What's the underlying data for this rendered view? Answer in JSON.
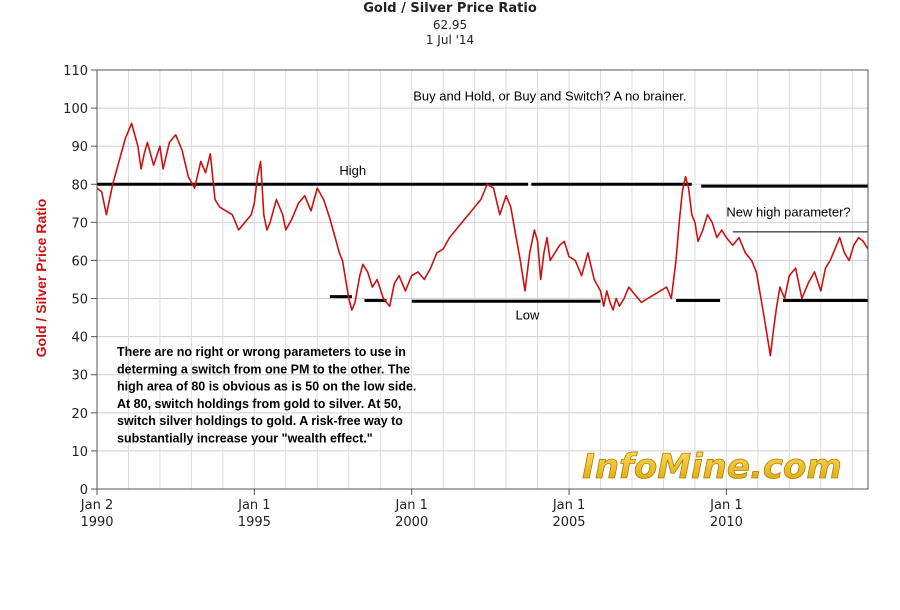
{
  "chart_data": {
    "type": "line",
    "title": "Gold / Silver Price Ratio",
    "subtitle": "62.95",
    "date_label": "1 Jul '14",
    "ylabel": "Gold / Silver Price Ratio",
    "xlabel": "",
    "ylim": [
      0,
      110
    ],
    "xlim": [
      1990.0,
      2014.5
    ],
    "yticks": [
      0,
      10,
      20,
      30,
      40,
      50,
      60,
      70,
      80,
      90,
      100,
      110
    ],
    "xticks": [
      {
        "x": 1990.0,
        "line1": "Jan 2",
        "line2": "1990"
      },
      {
        "x": 1995.0,
        "line1": "Jan 1",
        "line2": "1995"
      },
      {
        "x": 2000.0,
        "line1": "Jan 1",
        "line2": "2000"
      },
      {
        "x": 2005.0,
        "line1": "Jan 1",
        "line2": "2005"
      },
      {
        "x": 2010.0,
        "line1": "Jan 1",
        "line2": "2010"
      }
    ],
    "grid": true,
    "line_color": "#cc1111",
    "series": [
      {
        "x": [
          1990.0,
          1990.15,
          1990.3,
          1990.5,
          1990.7,
          1990.9,
          1991.1,
          1991.3,
          1991.4,
          1991.5,
          1991.6,
          1991.8,
          1992.0,
          1992.1,
          1992.3,
          1992.5,
          1992.7,
          1992.9,
          1993.1,
          1993.3,
          1993.45,
          1993.6,
          1993.75,
          1993.9,
          1994.1,
          1994.3,
          1994.5,
          1994.7,
          1994.9,
          1995.0,
          1995.1,
          1995.2,
          1995.3,
          1995.4,
          1995.5,
          1995.7,
          1995.9,
          1996.0,
          1996.2,
          1996.4,
          1996.6,
          1996.8,
          1997.0,
          1997.2,
          1997.4,
          1997.6,
          1997.7,
          1997.8,
          1998.0,
          1998.1,
          1998.2,
          1998.35,
          1998.45,
          1998.6,
          1998.75,
          1998.9,
          1999.1,
          1999.3,
          1999.45,
          1999.6,
          1999.8,
          2000.0,
          2000.2,
          2000.4,
          2000.6,
          2000.8,
          2001.0,
          2001.2,
          2001.4,
          2001.6,
          2001.8,
          2002.0,
          2002.2,
          2002.4,
          2002.6,
          2002.8,
          2003.0,
          2003.15,
          2003.3,
          2003.45,
          2003.6,
          2003.75,
          2003.9,
          2004.0,
          2004.1,
          2004.2,
          2004.3,
          2004.4,
          2004.55,
          2004.7,
          2004.85,
          2005.0,
          2005.2,
          2005.4,
          2005.6,
          2005.8,
          2006.0,
          2006.1,
          2006.2,
          2006.3,
          2006.4,
          2006.5,
          2006.6,
          2006.75,
          2006.9,
          2007.1,
          2007.3,
          2007.5,
          2007.7,
          2007.9,
          2008.1,
          2008.25,
          2008.4,
          2008.5,
          2008.6,
          2008.7,
          2008.8,
          2008.9,
          2009.0,
          2009.1,
          2009.25,
          2009.4,
          2009.55,
          2009.7,
          2009.85,
          2010.0,
          2010.2,
          2010.4,
          2010.6,
          2010.8,
          2010.95,
          2011.1,
          2011.2,
          2011.3,
          2011.4,
          2011.5,
          2011.6,
          2011.7,
          2011.85,
          2012.0,
          2012.2,
          2012.4,
          2012.6,
          2012.8,
          2013.0,
          2013.15,
          2013.3,
          2013.45,
          2013.6,
          2013.75,
          2013.9,
          2014.05,
          2014.2,
          2014.35,
          2014.5
        ],
        "y": [
          79,
          78,
          72,
          80,
          86,
          92,
          96,
          90,
          84,
          88,
          91,
          85,
          90,
          84,
          91,
          93,
          89,
          82,
          79,
          86,
          83,
          88,
          76,
          74,
          73,
          72,
          68,
          70,
          72,
          75,
          82,
          86,
          72,
          68,
          70,
          76,
          72,
          68,
          71,
          75,
          77,
          73,
          79,
          76,
          71,
          65,
          62,
          60,
          50,
          47,
          49,
          56,
          59,
          57,
          53,
          55,
          50,
          48,
          54,
          56,
          52,
          56,
          57,
          55,
          58,
          62,
          63,
          66,
          68,
          70,
          72,
          74,
          76,
          80,
          79,
          72,
          77,
          74,
          67,
          60,
          52,
          62,
          68,
          65,
          55,
          62,
          66,
          60,
          62,
          64,
          65,
          61,
          60,
          56,
          62,
          55,
          52,
          48,
          52,
          49,
          47,
          50,
          48,
          50,
          53,
          51,
          49,
          50,
          51,
          52,
          53,
          50,
          60,
          70,
          78,
          82,
          79,
          72,
          70,
          65,
          68,
          72,
          70,
          66,
          68,
          66,
          64,
          66,
          62,
          60,
          57,
          50,
          45,
          40,
          35,
          42,
          48,
          53,
          50,
          56,
          58,
          50,
          54,
          57,
          52,
          58,
          60,
          63,
          66,
          62,
          60,
          64,
          66,
          65,
          63
        ]
      }
    ],
    "annotations": [
      {
        "text": "Buy and Hold, or Buy and Switch?  A no brainer.",
        "x": 2000.05,
        "y": 102
      },
      {
        "text": "High",
        "x": 1997.7,
        "y": 82.5
      },
      {
        "text": "New high parameter?",
        "x": 2010.0,
        "y": 71.5
      },
      {
        "text": "Low",
        "x": 2003.3,
        "y": 44.5
      }
    ],
    "note_lines": [
      "There are no right or wrong parameters to use in",
      "determing a switch from one PM to the other.  The",
      "high area of 80 is obvious as is 50 on the low side.",
      "At 80, switch holdings from gold to silver.  At 50,",
      "switch silver holdings to gold.  A risk-free way to",
      "substantially increase your \"wealth effect.\""
    ],
    "high_lines": [
      {
        "x1": 1990.0,
        "x2": 2003.7,
        "y": 80
      },
      {
        "x1": 2003.8,
        "x2": 2008.9,
        "y": 80
      },
      {
        "x1": 2009.2,
        "x2": 2014.5,
        "y": 79.5
      }
    ],
    "low_lines": [
      {
        "x1": 1997.4,
        "x2": 1998.1,
        "y": 50.5
      },
      {
        "x1": 1998.5,
        "x2": 1999.2,
        "y": 49.5
      },
      {
        "x1": 2000.0,
        "x2": 2006.0,
        "y": 49.3
      },
      {
        "x1": 2008.4,
        "x2": 2009.8,
        "y": 49.5
      },
      {
        "x1": 2011.8,
        "x2": 2014.5,
        "y": 49.5
      }
    ],
    "new_high_line": {
      "x1": 2010.2,
      "x2": 2014.5,
      "y": 67.5
    },
    "watermark": "InfoMine.com"
  }
}
